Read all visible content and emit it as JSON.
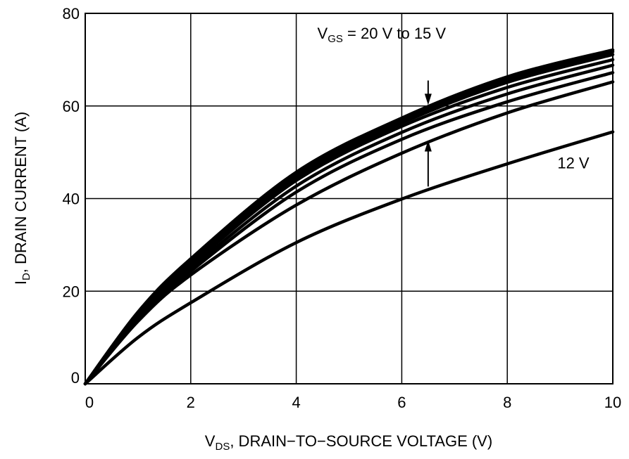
{
  "chart_data": {
    "type": "line",
    "title": "",
    "xlabel": {
      "main": "V",
      "sub": "DS",
      "rest": ", DRAIN−TO−SOURCE VOLTAGE (V)"
    },
    "ylabel": {
      "main": "I",
      "sub": "D",
      "rest": ", DRAIN CURRENT (A)"
    },
    "xlim": [
      0,
      10
    ],
    "ylim": [
      0,
      80
    ],
    "xticks": [
      0,
      2,
      4,
      6,
      8,
      10
    ],
    "yticks": [
      0,
      20,
      40,
      60,
      80
    ],
    "grid": true,
    "x": [
      0,
      1,
      2,
      4,
      6,
      8,
      10
    ],
    "series": [
      {
        "values": [
          0,
          15.5,
          27.0,
          45.7,
          57.4,
          66.3,
          72.1
        ]
      },
      {
        "values": [
          0,
          15.2,
          26.6,
          45.2,
          56.8,
          65.7,
          71.7
        ]
      },
      {
        "values": [
          0,
          15.0,
          26.2,
          44.6,
          56.3,
          65.1,
          71.1
        ]
      },
      {
        "values": [
          0,
          14.7,
          25.6,
          43.9,
          55.6,
          64.0,
          70.0
        ]
      },
      {
        "values": [
          0,
          14.3,
          24.9,
          42.7,
          54.3,
          62.6,
          68.8
        ]
      },
      {
        "values": [
          0,
          14.0,
          24.3,
          41.4,
          52.8,
          60.9,
          67.2
        ]
      },
      {
        "values": [
          0,
          13.5,
          23.5,
          38.6,
          49.8,
          58.5,
          65.2
        ]
      },
      {
        "name": "12 V",
        "values": [
          0,
          10.0,
          17.5,
          30.5,
          39.9,
          47.5,
          54.4
        ]
      }
    ],
    "annotations": [
      {
        "text_main": "V",
        "text_sub": "GS",
        "text_rest": " = 20 V to 15 V",
        "x": 4.4,
        "y": 74.5
      },
      {
        "text": "12 V",
        "x": 8.95,
        "y": 46.5
      }
    ],
    "arrows": [
      {
        "x": 6.5,
        "from": 65.5,
        "to": 60.2
      },
      {
        "x": 6.5,
        "from": 42.6,
        "to": 52.6
      }
    ]
  }
}
